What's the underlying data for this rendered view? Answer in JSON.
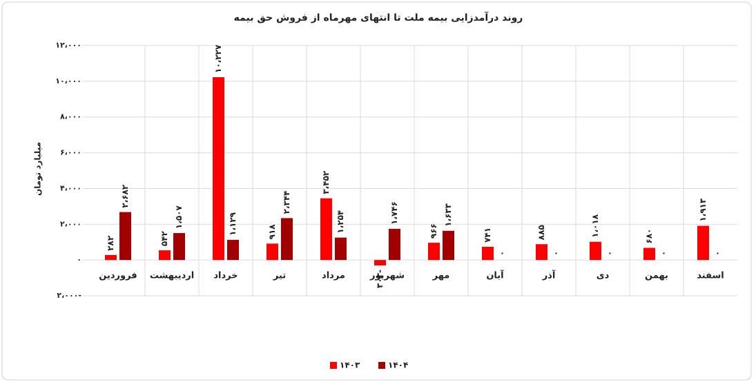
{
  "chart_data": {
    "type": "bar",
    "title": "روند درآمدزایی بیمه ملت تا انتهای مهرماه از فروش حق بیمه",
    "y_label": "میلیارد تومان",
    "categories": [
      "فروردین",
      "اردیبهشت",
      "خرداد",
      "تیر",
      "مرداد",
      "شهریور",
      "مهر",
      "آبان",
      "آذر",
      "دی",
      "بهمن",
      "اسفند"
    ],
    "series": [
      {
        "name": "۱۴۰۳",
        "color": "#ff0000",
        "values": [
          282,
          542,
          10227,
          918,
          3452,
          -303,
          966,
          741,
          885,
          1018,
          680,
          1913
        ],
        "value_labels": [
          "۲۸۲",
          "۵۴۲",
          "۱۰،۲۲۷",
          "۹۱۸",
          "۳،۴۵۲",
          "۳۰۳-",
          "۹۶۶",
          "۷۴۱",
          "۸۸۵",
          "۱،۰۱۸",
          "۶۸۰",
          "۱،۹۱۳"
        ]
      },
      {
        "name": "۱۴۰۴",
        "color": "#a00000",
        "values": [
          2682,
          1507,
          1129,
          2344,
          1254,
          1746,
          1633,
          0,
          0,
          0,
          0,
          0
        ],
        "value_labels": [
          "۲،۶۸۲",
          "۱،۵۰۷",
          "۱،۱۲۹",
          "۲،۳۴۴",
          "۱،۲۵۴",
          "۱،۷۴۶",
          "۱،۶۳۳",
          "۰",
          "۰",
          "۰",
          "۰",
          "۰"
        ]
      }
    ],
    "ylim": [
      -2000,
      12000
    ],
    "yticks": [
      {
        "value": -2000,
        "label": "۲،۰۰۰-"
      },
      {
        "value": 0,
        "label": "۰"
      },
      {
        "value": 2000,
        "label": "۲،۰۰۰"
      },
      {
        "value": 4000,
        "label": "۴،۰۰۰"
      },
      {
        "value": 6000,
        "label": "۶،۰۰۰"
      },
      {
        "value": 8000,
        "label": "۸،۰۰۰"
      },
      {
        "value": 10000,
        "label": "۱۰،۰۰۰"
      },
      {
        "value": 12000,
        "label": "۱۲،۰۰۰"
      }
    ],
    "grid": true,
    "legend": "bottom"
  }
}
